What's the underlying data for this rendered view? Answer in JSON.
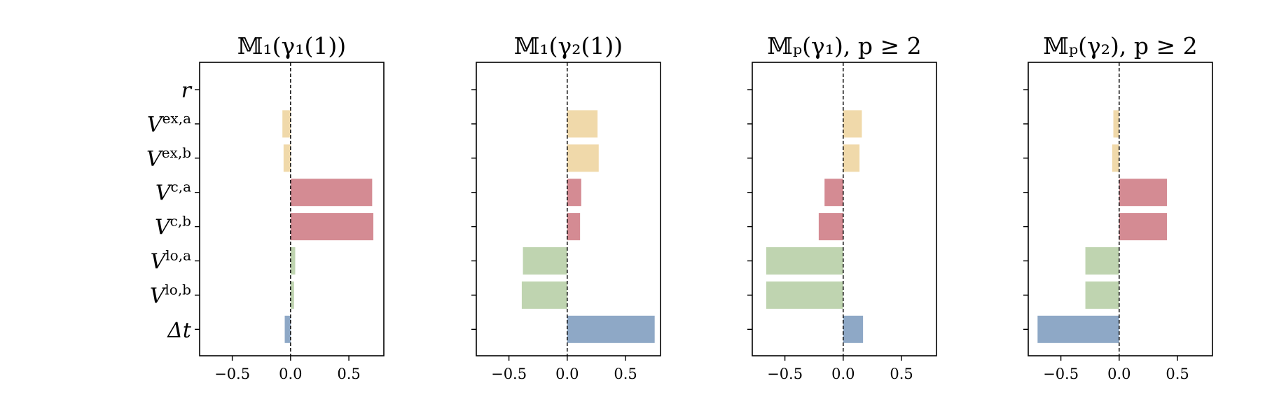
{
  "colors": {
    "ex": "#f0d9aa",
    "c": "#d48b93",
    "lo": "#bfd4b0",
    "dt": "#8ea8c6",
    "axis": "#000000"
  },
  "chart_data": [
    {
      "type": "bar",
      "orientation": "horizontal",
      "title": "𝕄₁(γ₁(1))",
      "xlim": [
        -0.78,
        0.8
      ],
      "xticks": [
        "−0.5",
        "0.0",
        "0.5"
      ],
      "xtick_values": [
        -0.5,
        0,
        0.5
      ],
      "reference_line": 0,
      "categories": [
        "r",
        "V^ex,a",
        "V^ex,b",
        "V^c,a",
        "V^c,b",
        "V^lo,a",
        "V^lo,b",
        "Δt"
      ],
      "values": [
        0,
        -0.07,
        -0.06,
        0.7,
        0.71,
        0.04,
        0.03,
        -0.05
      ],
      "show_ytick_labels": true
    },
    {
      "type": "bar",
      "orientation": "horizontal",
      "title": "𝕄₁(γ₂(1))",
      "xlim": [
        -0.78,
        0.8
      ],
      "xticks": [
        "−0.5",
        "0.0",
        "0.5"
      ],
      "xtick_values": [
        -0.5,
        0,
        0.5
      ],
      "reference_line": 0,
      "categories": [
        "r",
        "V^ex,a",
        "V^ex,b",
        "V^c,a",
        "V^c,b",
        "V^lo,a",
        "V^lo,b",
        "Δt"
      ],
      "values": [
        0,
        0.26,
        0.27,
        0.12,
        0.11,
        -0.38,
        -0.39,
        0.75
      ],
      "show_ytick_labels": false
    },
    {
      "type": "bar",
      "orientation": "horizontal",
      "title": "𝕄ₚ(γ₁),    p ≥ 2",
      "xlim": [
        -0.78,
        0.8
      ],
      "xticks": [
        "−0.5",
        "0.0",
        "0.5"
      ],
      "xtick_values": [
        -0.5,
        0,
        0.5
      ],
      "reference_line": 0,
      "categories": [
        "r",
        "V^ex,a",
        "V^ex,b",
        "V^c,a",
        "V^c,b",
        "V^lo,a",
        "V^lo,b",
        "Δt"
      ],
      "values": [
        0,
        0.16,
        0.14,
        -0.16,
        -0.21,
        -0.66,
        -0.66,
        0.17
      ],
      "show_ytick_labels": false
    },
    {
      "type": "bar",
      "orientation": "horizontal",
      "title": "𝕄ₚ(γ₂),    p ≥ 2",
      "xlim": [
        -0.78,
        0.8
      ],
      "xticks": [
        "−0.5",
        "0.0",
        "0.5"
      ],
      "xtick_values": [
        -0.5,
        0,
        0.5
      ],
      "reference_line": 0,
      "categories": [
        "r",
        "V^ex,a",
        "V^ex,b",
        "V^c,a",
        "V^c,b",
        "V^lo,a",
        "V^lo,b",
        "Δt"
      ],
      "values": [
        0,
        -0.05,
        -0.06,
        0.41,
        0.41,
        -0.29,
        -0.29,
        -0.7
      ],
      "show_ytick_labels": false
    }
  ],
  "ytick_label_parts": [
    {
      "base": "r",
      "sup": ""
    },
    {
      "base": "V",
      "sup": "ex,a"
    },
    {
      "base": "V",
      "sup": "ex,b"
    },
    {
      "base": "V",
      "sup": "c,a"
    },
    {
      "base": "V",
      "sup": "c,b"
    },
    {
      "base": "V",
      "sup": "lo,a"
    },
    {
      "base": "V",
      "sup": "lo,b"
    },
    {
      "base": "Δt",
      "sup": ""
    }
  ],
  "category_groups": [
    "none",
    "ex",
    "ex",
    "c",
    "c",
    "lo",
    "lo",
    "dt"
  ]
}
